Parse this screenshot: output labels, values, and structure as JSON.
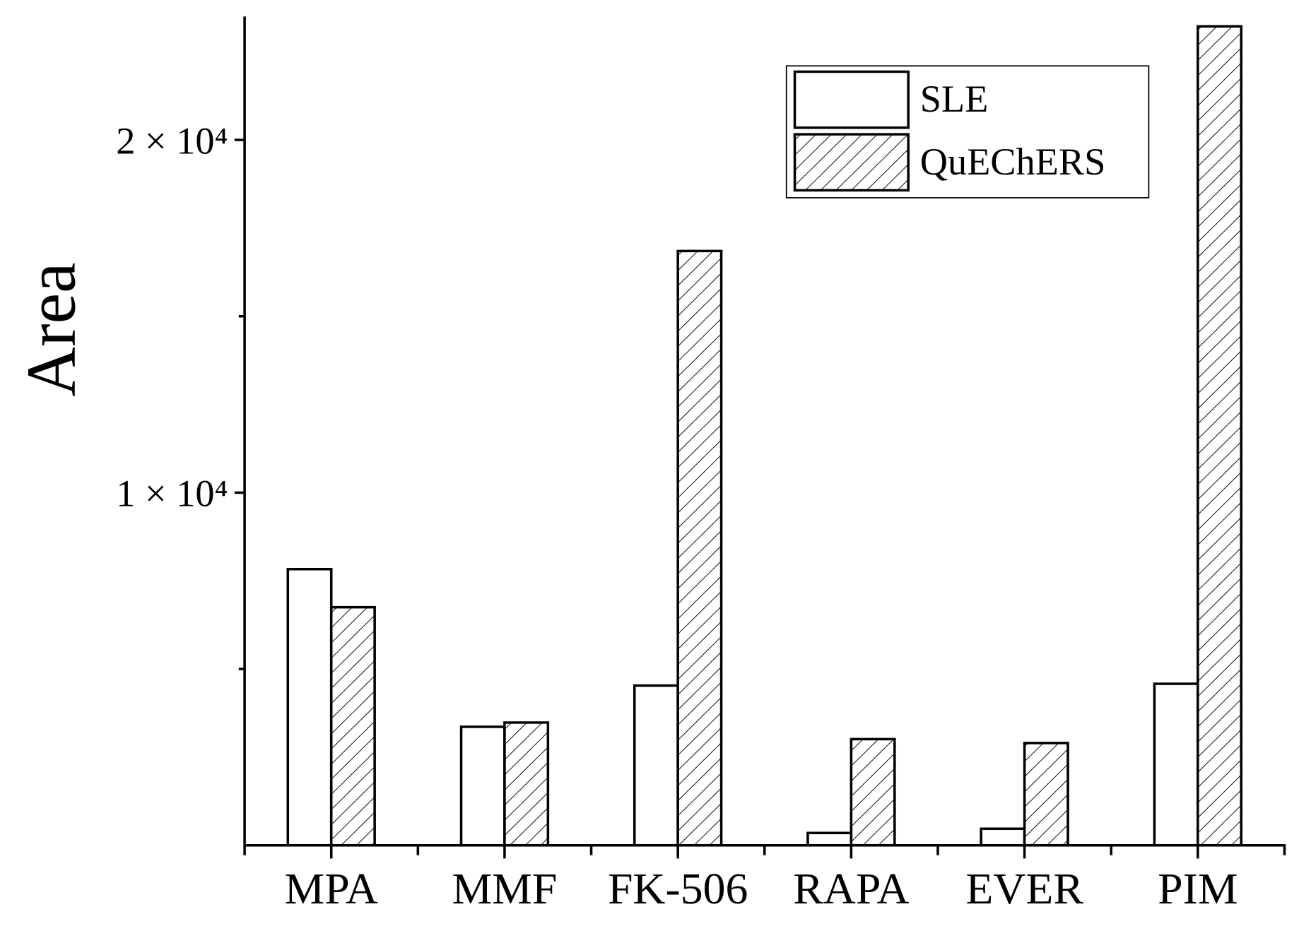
{
  "chart_data": {
    "type": "bar",
    "ylabel": "Area",
    "categories": [
      "MPA",
      "MMF",
      "FK-506",
      "RAPA",
      "EVER",
      "PIM"
    ],
    "series": [
      {
        "name": "SLE",
        "color": "#ffffff",
        "hatch": false,
        "values": [
          7830,
          3360,
          4530,
          350,
          470,
          4580
        ]
      },
      {
        "name": "QuEChERS",
        "color": "#ffffff",
        "hatch": true,
        "values": [
          6750,
          3480,
          16850,
          3010,
          2900,
          23220
        ]
      }
    ],
    "ylim": [
      0,
      23500
    ],
    "yticks": [
      {
        "value": 10000,
        "label": "1 × 10⁴"
      },
      {
        "value": 20000,
        "label": "2 × 10⁴"
      }
    ],
    "yminorticks": [
      5000,
      15000
    ],
    "legend": "upper right",
    "grid": false
  }
}
